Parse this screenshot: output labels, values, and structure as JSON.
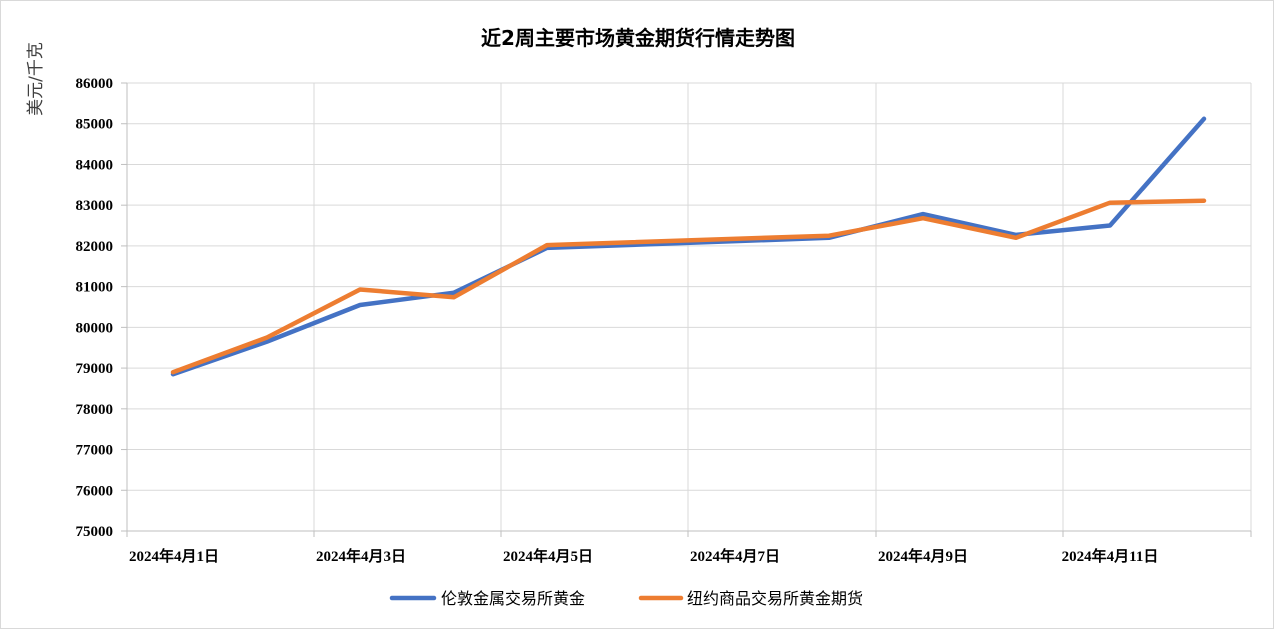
{
  "chart_data": {
    "type": "line",
    "title": "近2周主要市场黄金期货行情走势图",
    "ylabel": "美元/千克",
    "xlabel": "",
    "ylim": [
      75000,
      86000
    ],
    "ytick_step": 1000,
    "x_tick_labels": [
      "2024年4月1日",
      "2024年4月3日",
      "2024年4月5日",
      "2024年4月7日",
      "2024年4月9日",
      "2024年4月11日"
    ],
    "x": [
      "2024-04-01",
      "2024-04-02",
      "2024-04-03",
      "2024-04-04",
      "2024-04-05",
      "2024-04-08",
      "2024-04-09",
      "2024-04-10",
      "2024-04-11",
      "2024-04-12"
    ],
    "series": [
      {
        "name": "伦敦金属交易所黄金",
        "color": "#4472C4",
        "values": [
          78850,
          79650,
          80550,
          80850,
          81950,
          82200,
          82780,
          82270,
          82500,
          85120
        ]
      },
      {
        "name": "纽约商品交易所黄金期货",
        "color": "#ED7D31",
        "values": [
          78900,
          79750,
          80930,
          80740,
          82020,
          82250,
          82680,
          82200,
          83060,
          83110
        ]
      }
    ],
    "grid": true,
    "legend_position": "bottom"
  }
}
